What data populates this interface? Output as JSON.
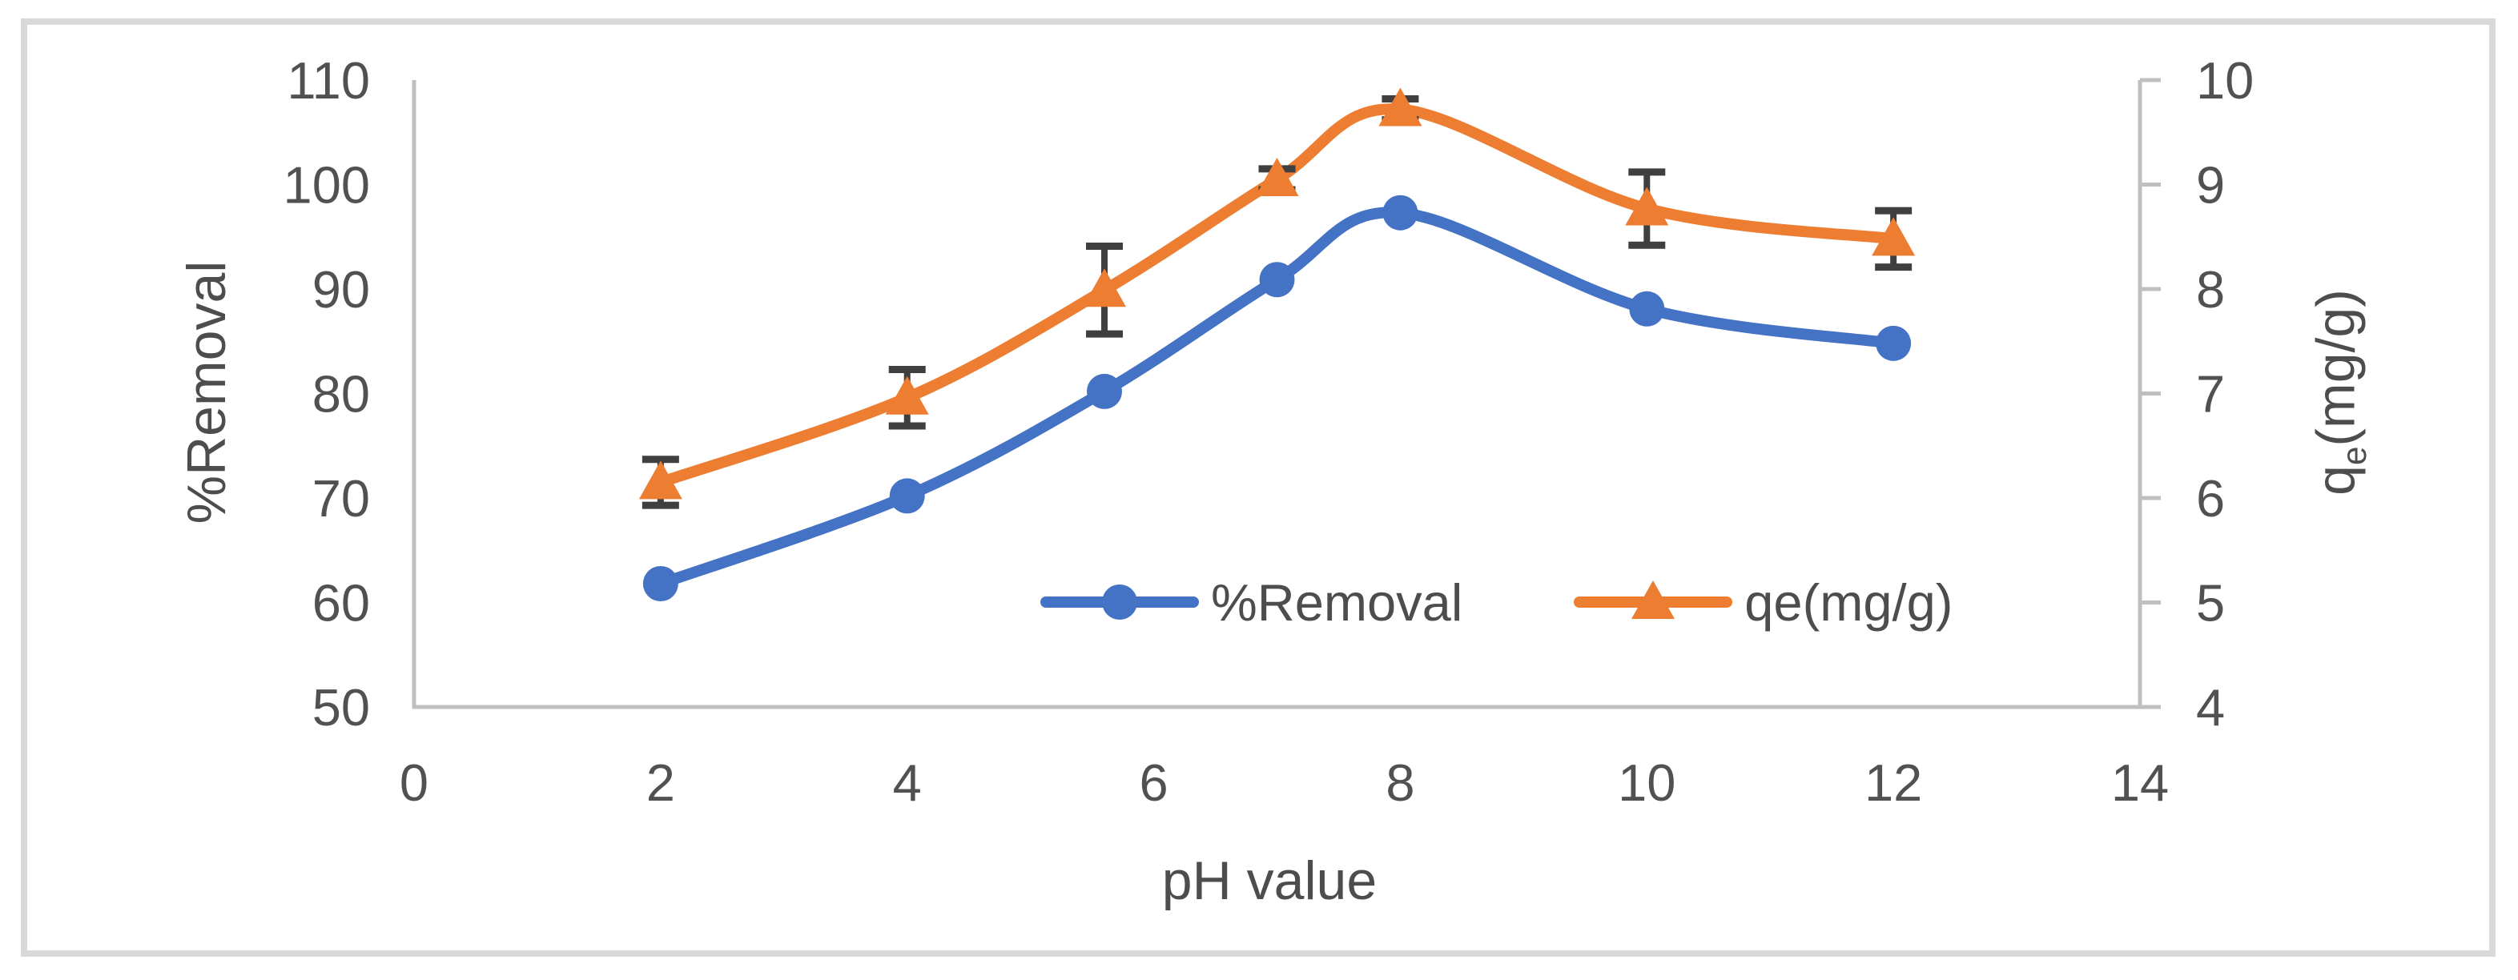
{
  "chart_data": {
    "type": "line",
    "title": "",
    "xlabel": "pH value",
    "x_axis": {
      "range": [
        0,
        14
      ],
      "ticks": [
        0,
        2,
        4,
        6,
        8,
        10,
        12,
        14
      ]
    },
    "y_left_axis": {
      "label": "%Removal",
      "range": [
        50,
        110
      ],
      "ticks": [
        110,
        100,
        90,
        80,
        70,
        60,
        50
      ]
    },
    "y_right_axis": {
      "label": "qe(mg/g)",
      "label_parts": {
        "main": "q",
        "sub": "e",
        "rest": "(mg/g)"
      },
      "range": [
        4,
        10
      ],
      "ticks": [
        10,
        9,
        8,
        7,
        6,
        5,
        4
      ]
    },
    "x": [
      2,
      4,
      5.6,
      7,
      8,
      10,
      12
    ],
    "series": [
      {
        "name": "%Removal",
        "axis": "left",
        "color": "#4472C4",
        "marker": "circle",
        "values": [
          61.8,
          70.2,
          80.2,
          90.9,
          97.3,
          88.1,
          84.8
        ]
      },
      {
        "name": "qe(mg/g)",
        "axis": "right",
        "color": "#ED7D31",
        "marker": "triangle",
        "values": [
          6.15,
          6.96,
          7.99,
          9.05,
          9.72,
          8.77,
          8.48
        ],
        "error": [
          0.22,
          0.27,
          0.42,
          0.1,
          0.1,
          0.35,
          0.27
        ]
      }
    ],
    "legend": {
      "position": "bottom-center-inside",
      "items": [
        {
          "label": "%Removal",
          "color": "#4472C4",
          "marker": "circle"
        },
        {
          "label": "qe(mg/g)",
          "color": "#ED7D31",
          "marker": "triangle"
        }
      ]
    },
    "grid": false,
    "colors": {
      "axis": "#BFBFBF",
      "tick_text": "#515151",
      "error_bar": "#3F3F3F",
      "frame_border": "#D9D9D9",
      "background": "#FFFFFF"
    }
  }
}
